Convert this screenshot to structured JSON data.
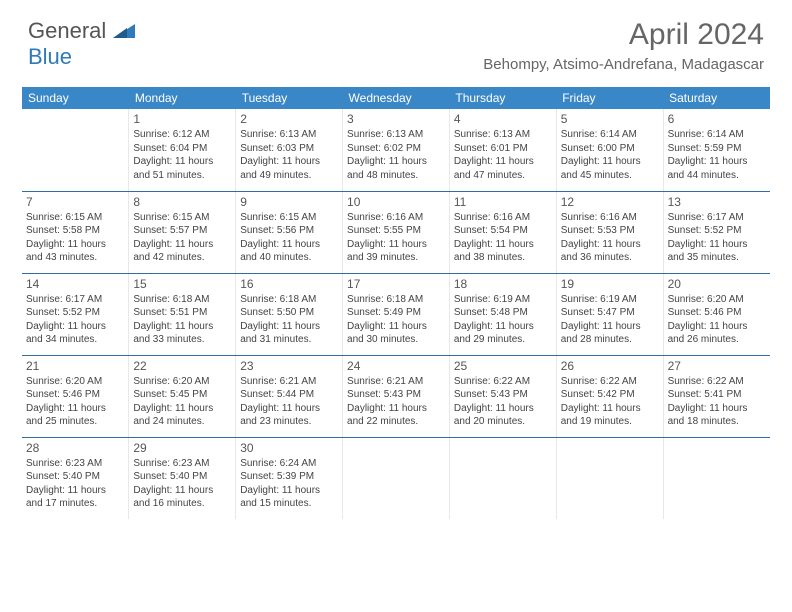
{
  "logo": {
    "word1": "General",
    "word2": "Blue"
  },
  "title": "April 2024",
  "location": "Behompy, Atsimo-Andrefana, Madagascar",
  "colors": {
    "header_bg": "#3a87c8",
    "header_text": "#ffffff",
    "row_divider": "#2f6da3",
    "cell_divider": "#e8e8e8",
    "text": "#444444",
    "title_color": "#666666",
    "logo_gray": "#555555",
    "logo_blue": "#2f7ab8"
  },
  "weekdays": [
    "Sunday",
    "Monday",
    "Tuesday",
    "Wednesday",
    "Thursday",
    "Friday",
    "Saturday"
  ],
  "start_offset": 1,
  "days": [
    {
      "n": 1,
      "sr": "6:12 AM",
      "ss": "6:04 PM",
      "dl": "11 hours and 51 minutes."
    },
    {
      "n": 2,
      "sr": "6:13 AM",
      "ss": "6:03 PM",
      "dl": "11 hours and 49 minutes."
    },
    {
      "n": 3,
      "sr": "6:13 AM",
      "ss": "6:02 PM",
      "dl": "11 hours and 48 minutes."
    },
    {
      "n": 4,
      "sr": "6:13 AM",
      "ss": "6:01 PM",
      "dl": "11 hours and 47 minutes."
    },
    {
      "n": 5,
      "sr": "6:14 AM",
      "ss": "6:00 PM",
      "dl": "11 hours and 45 minutes."
    },
    {
      "n": 6,
      "sr": "6:14 AM",
      "ss": "5:59 PM",
      "dl": "11 hours and 44 minutes."
    },
    {
      "n": 7,
      "sr": "6:15 AM",
      "ss": "5:58 PM",
      "dl": "11 hours and 43 minutes."
    },
    {
      "n": 8,
      "sr": "6:15 AM",
      "ss": "5:57 PM",
      "dl": "11 hours and 42 minutes."
    },
    {
      "n": 9,
      "sr": "6:15 AM",
      "ss": "5:56 PM",
      "dl": "11 hours and 40 minutes."
    },
    {
      "n": 10,
      "sr": "6:16 AM",
      "ss": "5:55 PM",
      "dl": "11 hours and 39 minutes."
    },
    {
      "n": 11,
      "sr": "6:16 AM",
      "ss": "5:54 PM",
      "dl": "11 hours and 38 minutes."
    },
    {
      "n": 12,
      "sr": "6:16 AM",
      "ss": "5:53 PM",
      "dl": "11 hours and 36 minutes."
    },
    {
      "n": 13,
      "sr": "6:17 AM",
      "ss": "5:52 PM",
      "dl": "11 hours and 35 minutes."
    },
    {
      "n": 14,
      "sr": "6:17 AM",
      "ss": "5:52 PM",
      "dl": "11 hours and 34 minutes."
    },
    {
      "n": 15,
      "sr": "6:18 AM",
      "ss": "5:51 PM",
      "dl": "11 hours and 33 minutes."
    },
    {
      "n": 16,
      "sr": "6:18 AM",
      "ss": "5:50 PM",
      "dl": "11 hours and 31 minutes."
    },
    {
      "n": 17,
      "sr": "6:18 AM",
      "ss": "5:49 PM",
      "dl": "11 hours and 30 minutes."
    },
    {
      "n": 18,
      "sr": "6:19 AM",
      "ss": "5:48 PM",
      "dl": "11 hours and 29 minutes."
    },
    {
      "n": 19,
      "sr": "6:19 AM",
      "ss": "5:47 PM",
      "dl": "11 hours and 28 minutes."
    },
    {
      "n": 20,
      "sr": "6:20 AM",
      "ss": "5:46 PM",
      "dl": "11 hours and 26 minutes."
    },
    {
      "n": 21,
      "sr": "6:20 AM",
      "ss": "5:46 PM",
      "dl": "11 hours and 25 minutes."
    },
    {
      "n": 22,
      "sr": "6:20 AM",
      "ss": "5:45 PM",
      "dl": "11 hours and 24 minutes."
    },
    {
      "n": 23,
      "sr": "6:21 AM",
      "ss": "5:44 PM",
      "dl": "11 hours and 23 minutes."
    },
    {
      "n": 24,
      "sr": "6:21 AM",
      "ss": "5:43 PM",
      "dl": "11 hours and 22 minutes."
    },
    {
      "n": 25,
      "sr": "6:22 AM",
      "ss": "5:43 PM",
      "dl": "11 hours and 20 minutes."
    },
    {
      "n": 26,
      "sr": "6:22 AM",
      "ss": "5:42 PM",
      "dl": "11 hours and 19 minutes."
    },
    {
      "n": 27,
      "sr": "6:22 AM",
      "ss": "5:41 PM",
      "dl": "11 hours and 18 minutes."
    },
    {
      "n": 28,
      "sr": "6:23 AM",
      "ss": "5:40 PM",
      "dl": "11 hours and 17 minutes."
    },
    {
      "n": 29,
      "sr": "6:23 AM",
      "ss": "5:40 PM",
      "dl": "11 hours and 16 minutes."
    },
    {
      "n": 30,
      "sr": "6:24 AM",
      "ss": "5:39 PM",
      "dl": "11 hours and 15 minutes."
    }
  ],
  "labels": {
    "sunrise": "Sunrise:",
    "sunset": "Sunset:",
    "daylight": "Daylight:"
  }
}
